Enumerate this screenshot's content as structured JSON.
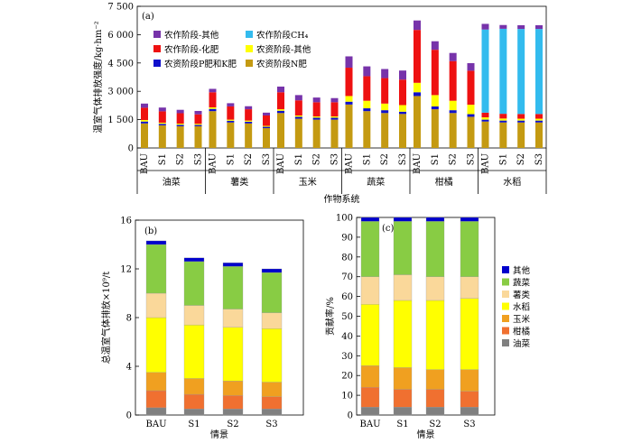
{
  "chart_data": [
    {
      "type": "bar",
      "stacked": true,
      "panel_label": "(a)",
      "ylabel": "温室气体排放强度/kg·hm⁻²",
      "xlabel": "作物系统",
      "ylim": [
        0,
        7500
      ],
      "yticks": [
        0,
        1500,
        3000,
        4500,
        6000,
        7500
      ],
      "yticks_text": [
        "0",
        "1 500",
        "3 000",
        "4 500",
        "6 000",
        "7 500"
      ],
      "groups": [
        {
          "name": "油菜",
          "categories": [
            "BAU",
            "S1",
            "S2",
            "S3"
          ]
        },
        {
          "name": "薯类",
          "categories": [
            "BAU",
            "S1",
            "S2",
            "S3"
          ]
        },
        {
          "name": "玉米",
          "categories": [
            "BAU",
            "S1",
            "S2",
            "S3"
          ]
        },
        {
          "name": "蔬菜",
          "categories": [
            "BAU",
            "S1",
            "S2",
            "S3"
          ]
        },
        {
          "name": "柑橘",
          "categories": [
            "BAU",
            "S1",
            "S2",
            "S3"
          ]
        },
        {
          "name": "水稻",
          "categories": [
            "BAU",
            "S1",
            "S2",
            "S3"
          ]
        }
      ],
      "legend_position": "top",
      "series": [
        {
          "name": "农资阶段N肥",
          "color": "#c49a12",
          "values": [
            1300,
            1200,
            1150,
            1150,
            1950,
            1350,
            1300,
            1050,
            1850,
            1550,
            1500,
            1500,
            2300,
            1950,
            1850,
            1800,
            2750,
            2050,
            1850,
            1650,
            1400,
            1350,
            1350,
            1350
          ]
        },
        {
          "name": "农资阶段P肥和K肥",
          "color": "#1010cc",
          "values": [
            100,
            80,
            80,
            70,
            120,
            90,
            90,
            70,
            120,
            100,
            100,
            100,
            150,
            150,
            150,
            120,
            200,
            150,
            150,
            140,
            100,
            100,
            100,
            100
          ]
        },
        {
          "name": "农资阶段-其他",
          "color": "#ffff00",
          "values": [
            80,
            60,
            60,
            60,
            80,
            60,
            60,
            50,
            80,
            70,
            70,
            70,
            300,
            400,
            350,
            350,
            500,
            600,
            500,
            500,
            120,
            110,
            100,
            100
          ]
        },
        {
          "name": "农作阶段-化肥",
          "color": "#ee1111",
          "values": [
            650,
            600,
            550,
            500,
            800,
            700,
            600,
            550,
            900,
            800,
            750,
            750,
            1500,
            1300,
            1350,
            1350,
            2800,
            2400,
            2100,
            1800,
            250,
            250,
            250,
            250
          ]
        },
        {
          "name": "农作阶段CH₄",
          "color": "#33bbee",
          "values": [
            0,
            0,
            0,
            0,
            0,
            0,
            0,
            0,
            0,
            0,
            0,
            0,
            0,
            0,
            0,
            0,
            0,
            0,
            0,
            0,
            4400,
            4500,
            4500,
            4500
          ]
        },
        {
          "name": "农作阶段-其他",
          "color": "#7733aa",
          "values": [
            220,
            200,
            180,
            180,
            180,
            170,
            160,
            150,
            300,
            280,
            250,
            220,
            600,
            520,
            480,
            480,
            500,
            450,
            430,
            400,
            300,
            200,
            200,
            200
          ]
        }
      ]
    },
    {
      "type": "bar",
      "stacked": true,
      "panel_label": "(b)",
      "ylabel": "总温室气体排放×10⁹/t",
      "xlabel": "情景",
      "ylim": [
        0,
        16
      ],
      "yticks": [
        0,
        4,
        8,
        12,
        16
      ],
      "categories": [
        "BAU",
        "S1",
        "S2",
        "S3"
      ],
      "series": [
        {
          "name": "油菜",
          "color": "#808080",
          "values": [
            0.6,
            0.5,
            0.5,
            0.5
          ]
        },
        {
          "name": "柑橘",
          "color": "#f07030",
          "values": [
            1.4,
            1.2,
            1.1,
            1.0
          ]
        },
        {
          "name": "玉米",
          "color": "#f0a020",
          "values": [
            1.5,
            1.3,
            1.2,
            1.2
          ]
        },
        {
          "name": "水稻",
          "color": "#ffff00",
          "values": [
            4.5,
            4.4,
            4.4,
            4.4
          ]
        },
        {
          "name": "薯类",
          "color": "#fad89a",
          "values": [
            2.0,
            1.6,
            1.5,
            1.3
          ]
        },
        {
          "name": "蔬菜",
          "color": "#88cc44",
          "values": [
            4.0,
            3.6,
            3.5,
            3.3
          ]
        },
        {
          "name": "其他",
          "color": "#0000cc",
          "values": [
            0.3,
            0.3,
            0.3,
            0.3
          ]
        }
      ]
    },
    {
      "type": "bar",
      "stacked": true,
      "panel_label": "(c)",
      "ylabel": "贡献率/%",
      "xlabel": "情景",
      "ylim": [
        0,
        100
      ],
      "yticks": [
        0,
        10,
        20,
        30,
        40,
        50,
        60,
        70,
        80,
        90,
        100
      ],
      "categories": [
        "BAU",
        "S1",
        "S2",
        "S3"
      ],
      "legend_position": "right",
      "legend": [
        "其他",
        "蔬菜",
        "薯类",
        "水稻",
        "玉米",
        "柑橘",
        "油菜"
      ],
      "series": [
        {
          "name": "油菜",
          "color": "#808080",
          "values": [
            4,
            4,
            4,
            4
          ]
        },
        {
          "name": "柑橘",
          "color": "#f07030",
          "values": [
            10,
            9,
            9,
            8
          ]
        },
        {
          "name": "玉米",
          "color": "#f0a020",
          "values": [
            11,
            11,
            10,
            11
          ]
        },
        {
          "name": "水稻",
          "color": "#ffff00",
          "values": [
            31,
            34,
            35,
            36
          ]
        },
        {
          "name": "薯类",
          "color": "#fad89a",
          "values": [
            14,
            13,
            12,
            11
          ]
        },
        {
          "name": "蔬菜",
          "color": "#88cc44",
          "values": [
            28,
            27,
            28,
            28
          ]
        },
        {
          "name": "其他",
          "color": "#0000cc",
          "values": [
            2,
            2,
            2,
            2
          ]
        }
      ]
    }
  ]
}
